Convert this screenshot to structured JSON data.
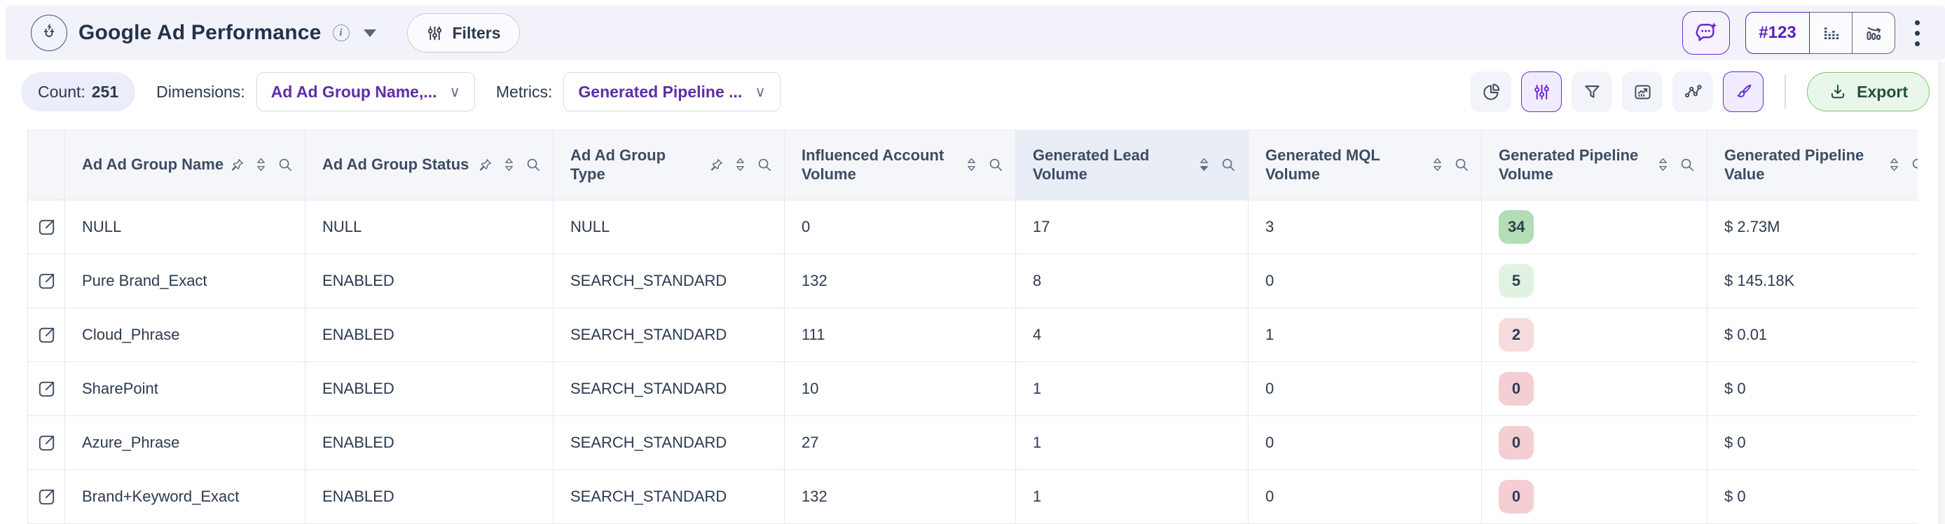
{
  "header": {
    "title": "Google Ad Performance",
    "filters_label": "Filters",
    "segmented_numeric": "#123",
    "logo": "magnet-bolt-icon"
  },
  "toolbar": {
    "count_label": "Count:",
    "count_value": "251",
    "dimensions_label": "Dimensions:",
    "dimensions_value": "Ad Ad Group Name,...",
    "metrics_label": "Metrics:",
    "metrics_value": "Generated Pipeline ...",
    "export_label": "Export"
  },
  "icons": {
    "info_glyph": "i",
    "chevron_down": "∨",
    "list": [
      "magnet-bolt-icon",
      "info-icon",
      "caret-down-icon",
      "sliders-icon",
      "ai-chat-sparkle-icon",
      "stacked-bars-icon",
      "declining-bars-icon",
      "kebab-icon",
      "pie-chart-icon",
      "funnel-icon",
      "card-chart-icon",
      "route-dots-icon",
      "paintbrush-icon",
      "download-icon",
      "pin-icon",
      "sort-icon",
      "search-icon",
      "external-link-icon"
    ]
  },
  "colors": {
    "topbar_bg": "#f2f3fa",
    "accent_purple": "#6d28d9",
    "dropdown_text_purple": "#5f2da8",
    "header_bg": "#f5f6fa",
    "header_highlight_bg": "#e9edf5",
    "border": "#e6e8ee",
    "export_bg": "#e9f7ea",
    "export_border": "#7cc56b",
    "badges": {
      "green_strong": "#b3ddb5",
      "green_light": "#e0f3e1",
      "pink_light": "#f8dbdd",
      "pink": "#f5ced3"
    }
  },
  "table": {
    "columns": [
      {
        "key": "name",
        "label": "Ad Ad Group Name",
        "kind": "dimension"
      },
      {
        "key": "status",
        "label": "Ad Ad Group Status",
        "kind": "dimension"
      },
      {
        "key": "type",
        "label": "Ad Ad Group Type",
        "kind": "dimension"
      },
      {
        "key": "influenced_account_volume",
        "label": "Influenced Account Volume",
        "kind": "metric"
      },
      {
        "key": "generated_lead_volume",
        "label": "Generated Lead Volume",
        "kind": "metric",
        "sorted": "desc",
        "highlighted": true
      },
      {
        "key": "generated_mql_volume",
        "label": "Generated MQL Volume",
        "kind": "metric"
      },
      {
        "key": "generated_pipeline_volume",
        "label": "Generated Pipeline Volume",
        "kind": "metric",
        "badge": true
      },
      {
        "key": "generated_pipeline_value",
        "label": "Generated Pipeline Value",
        "kind": "metric"
      }
    ],
    "rows": [
      {
        "name": "NULL",
        "status": "NULL",
        "type": "NULL",
        "influenced_account_volume": "0",
        "generated_lead_volume": "17",
        "generated_mql_volume": "3",
        "generated_pipeline_volume": "34",
        "pipeline_volume_style": "green_strong",
        "generated_pipeline_value": "$ 2.73M"
      },
      {
        "name": "Pure Brand_Exact",
        "status": "ENABLED",
        "type": "SEARCH_STANDARD",
        "influenced_account_volume": "132",
        "generated_lead_volume": "8",
        "generated_mql_volume": "0",
        "generated_pipeline_volume": "5",
        "pipeline_volume_style": "green_light",
        "generated_pipeline_value": "$ 145.18K"
      },
      {
        "name": "Cloud_Phrase",
        "status": "ENABLED",
        "type": "SEARCH_STANDARD",
        "influenced_account_volume": "111",
        "generated_lead_volume": "4",
        "generated_mql_volume": "1",
        "generated_pipeline_volume": "2",
        "pipeline_volume_style": "pink_light",
        "generated_pipeline_value": "$ 0.01"
      },
      {
        "name": "SharePoint",
        "status": "ENABLED",
        "type": "SEARCH_STANDARD",
        "influenced_account_volume": "10",
        "generated_lead_volume": "1",
        "generated_mql_volume": "0",
        "generated_pipeline_volume": "0",
        "pipeline_volume_style": "pink",
        "generated_pipeline_value": "$ 0"
      },
      {
        "name": "Azure_Phrase",
        "status": "ENABLED",
        "type": "SEARCH_STANDARD",
        "influenced_account_volume": "27",
        "generated_lead_volume": "1",
        "generated_mql_volume": "0",
        "generated_pipeline_volume": "0",
        "pipeline_volume_style": "pink",
        "generated_pipeline_value": "$ 0"
      },
      {
        "name": "Brand+Keyword_Exact",
        "status": "ENABLED",
        "type": "SEARCH_STANDARD",
        "influenced_account_volume": "132",
        "generated_lead_volume": "1",
        "generated_mql_volume": "0",
        "generated_pipeline_volume": "0",
        "pipeline_volume_style": "pink",
        "generated_pipeline_value": "$ 0"
      }
    ]
  }
}
